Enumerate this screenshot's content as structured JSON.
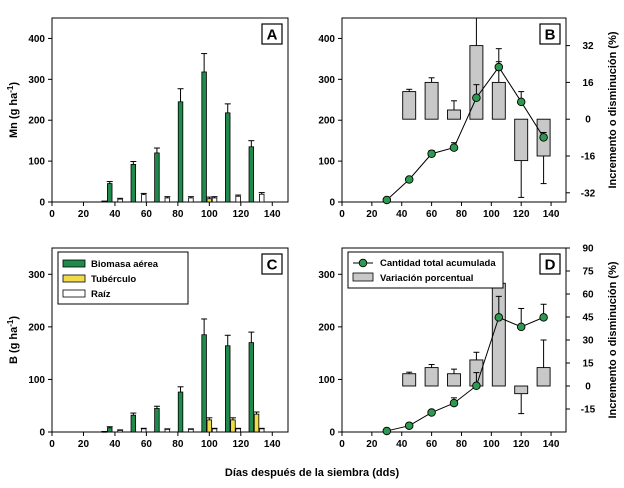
{
  "figure": {
    "xlabel": "Días después de la siembra (dds)"
  },
  "colors": {
    "biomasa": "#1f8a4c",
    "tuberculo": "#f0dc4a",
    "raiz": "#ffffff",
    "box": "#c8c8c8",
    "marker": "#2e9a50"
  },
  "chart_data": [
    {
      "panel": "A",
      "type": "bar",
      "ylabel": "Mn (g ha-1)",
      "ylim": [
        0,
        450
      ],
      "yticks": [
        0,
        100,
        200,
        300,
        400
      ],
      "xlim": [
        0,
        150
      ],
      "xticks": [
        0,
        20,
        40,
        60,
        80,
        100,
        120,
        140
      ],
      "categories": [
        30,
        40,
        55,
        70,
        85,
        100,
        115,
        130
      ],
      "series": [
        {
          "key": "biomasa",
          "values": [
            null,
            45,
            92,
            120,
            245,
            318,
            218,
            135
          ],
          "err": [
            0,
            5,
            7,
            12,
            32,
            45,
            22,
            15
          ]
        },
        {
          "key": "tuberculo",
          "values": [
            null,
            null,
            null,
            null,
            null,
            8,
            null,
            null
          ],
          "err": [
            0,
            0,
            0,
            0,
            0,
            4,
            0,
            0
          ]
        },
        {
          "key": "raiz",
          "values": [
            2,
            7,
            18,
            10,
            10,
            10,
            14,
            19
          ],
          "err": [
            0,
            2,
            3,
            3,
            3,
            3,
            3,
            4
          ]
        }
      ],
      "baseline_x": [
        25,
        30
      ]
    },
    {
      "panel": "B",
      "type": "line",
      "ylabel": "",
      "ylim": [
        0,
        450
      ],
      "yticks": [
        0,
        100,
        200,
        300,
        400
      ],
      "xlim": [
        0,
        150
      ],
      "xticks": [
        0,
        20,
        40,
        60,
        80,
        100,
        120,
        140
      ],
      "y2label": "Incremento o disminución (%)",
      "y2lim": [
        -36,
        44
      ],
      "y2ticks": [
        -32,
        -16,
        0,
        16,
        32
      ],
      "line": {
        "x": [
          30,
          45,
          60,
          75,
          90,
          105,
          120,
          135
        ],
        "y": [
          5,
          55,
          118,
          133,
          255,
          330,
          245,
          158
        ],
        "err": [
          0,
          0,
          8,
          12,
          32,
          45,
          25,
          12
        ]
      },
      "boxes": [
        {
          "x": 45,
          "low": 0,
          "high": 12,
          "err": 1
        },
        {
          "x": 60,
          "low": 0,
          "high": 16,
          "err": 2
        },
        {
          "x": 75,
          "low": 0,
          "high": 4,
          "err": 4
        },
        {
          "x": 90,
          "low": 0,
          "high": 32,
          "err": 12
        },
        {
          "x": 105,
          "low": 0,
          "high": 16,
          "err": 9
        },
        {
          "x": 120,
          "low": -18,
          "high": 0,
          "err": 16
        },
        {
          "x": 135,
          "low": -16,
          "high": 0,
          "err": 12
        }
      ]
    },
    {
      "panel": "C",
      "type": "bar",
      "ylabel": "B (g ha-1)",
      "ylim": [
        0,
        350
      ],
      "yticks": [
        0,
        100,
        200,
        300
      ],
      "xlim": [
        0,
        150
      ],
      "xticks": [
        0,
        20,
        40,
        60,
        80,
        100,
        120,
        140
      ],
      "categories": [
        30,
        40,
        55,
        70,
        85,
        100,
        115,
        130
      ],
      "series": [
        {
          "key": "biomasa",
          "values": [
            null,
            8,
            32,
            45,
            76,
            185,
            164,
            170
          ],
          "err": [
            0,
            2,
            4,
            4,
            10,
            30,
            20,
            20
          ]
        },
        {
          "key": "tuberculo",
          "values": [
            null,
            null,
            null,
            null,
            null,
            23,
            23,
            34
          ],
          "err": [
            0,
            0,
            0,
            0,
            0,
            4,
            4,
            4
          ]
        },
        {
          "key": "raiz",
          "values": [
            1,
            3,
            6,
            5,
            5,
            6,
            6,
            6
          ],
          "err": [
            0,
            1,
            1,
            1,
            1,
            1,
            1,
            1
          ]
        }
      ],
      "baseline_x": [
        25,
        30
      ],
      "legend": [
        "Biomasa aérea",
        "Tubérculo",
        "Raíz"
      ]
    },
    {
      "panel": "D",
      "type": "line",
      "ylabel": "",
      "ylim": [
        0,
        350
      ],
      "yticks": [
        0,
        100,
        200,
        300
      ],
      "xlim": [
        0,
        150
      ],
      "xticks": [
        0,
        20,
        40,
        60,
        80,
        100,
        120,
        140
      ],
      "y2label": "Incremento o disminución (%)",
      "y2lim": [
        -30,
        90
      ],
      "y2ticks": [
        -15,
        0,
        15,
        30,
        45,
        60,
        75,
        90
      ],
      "line": {
        "x": [
          30,
          45,
          60,
          75,
          90,
          105,
          120,
          135
        ],
        "y": [
          2,
          12,
          37,
          55,
          88,
          218,
          200,
          218
        ],
        "err": [
          0,
          0,
          0,
          10,
          25,
          40,
          35,
          25
        ]
      },
      "boxes": [
        {
          "x": 45,
          "low": 0,
          "high": 8,
          "err": 1
        },
        {
          "x": 60,
          "low": 0,
          "high": 12,
          "err": 2
        },
        {
          "x": 75,
          "low": 0,
          "high": 8,
          "err": 3
        },
        {
          "x": 90,
          "low": 0,
          "high": 17,
          "err": 5
        },
        {
          "x": 105,
          "low": 0,
          "high": 67,
          "err": 12
        },
        {
          "x": 120,
          "low": -5,
          "high": 0,
          "err": 13
        },
        {
          "x": 135,
          "low": 0,
          "high": 12,
          "err": 18
        }
      ],
      "legend": [
        "Cantidad total acumulada",
        "Variación porcentual"
      ]
    }
  ]
}
